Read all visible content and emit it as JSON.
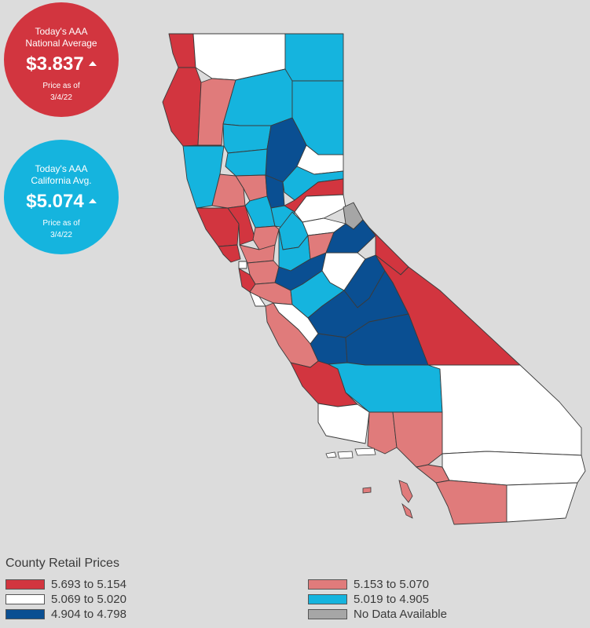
{
  "national": {
    "title_line1": "Today's AAA",
    "title_line2": "National Average",
    "price": "$3.837",
    "trend_icon": "up-triangle-icon",
    "asof_line1": "Price as of",
    "asof_line2": "3/4/22",
    "color": "#d2353f"
  },
  "state": {
    "title_line1": "Today's AAA",
    "title_line2": "California Avg.",
    "price": "$5.074",
    "trend_icon": "up-triangle-icon",
    "asof_line1": "Price as of",
    "asof_line2": "3/4/22",
    "color": "#15b4de"
  },
  "legend": {
    "title": "County Retail Prices",
    "items": [
      {
        "label": "5.693 to 5.154",
        "color": "#d2353f"
      },
      {
        "label": "5.069 to 5.020",
        "color": "#ffffff"
      },
      {
        "label": "4.904 to 4.798",
        "color": "#0a4f92"
      },
      {
        "label": "5.153 to 5.070",
        "color": "#e07b7b"
      },
      {
        "label": "5.019 to 4.905",
        "color": "#15b4de"
      },
      {
        "label": "No Data Available",
        "color": "#a6a6a6"
      }
    ]
  },
  "colors": {
    "background": "#dcdcdc",
    "tier1": "#d2353f",
    "tier2": "#ffffff",
    "tier3": "#0a4f92",
    "tier4": "#e07b7b",
    "tier5": "#15b4de",
    "no_data": "#a6a6a6"
  }
}
